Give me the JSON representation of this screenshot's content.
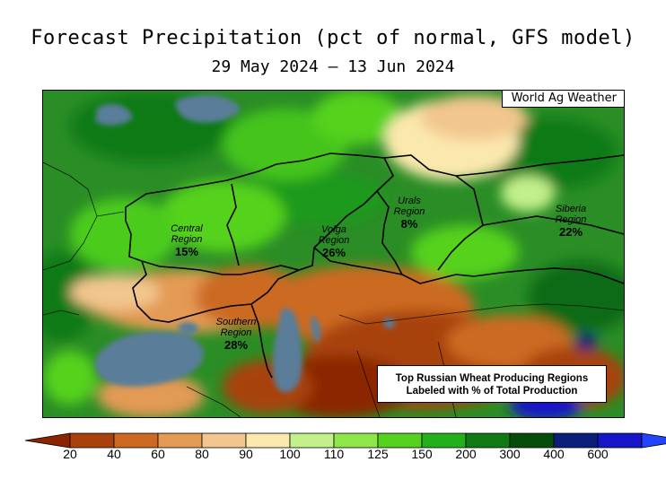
{
  "title": "Forecast Precipitation (pct of normal, GFS model)",
  "subtitle": "29 May 2024 — 13 Jun 2024",
  "source_label": "World Ag Weather",
  "regions": [
    {
      "name": "Central",
      "line2": "Region",
      "pct": "15%"
    },
    {
      "name": "Volga",
      "line2": "Region",
      "pct": "26%"
    },
    {
      "name": "Urals",
      "line2": "Region",
      "pct": "8%"
    },
    {
      "name": "Siberia",
      "line2": "Region",
      "pct": "22%"
    },
    {
      "name": "Southern",
      "line2": "Region",
      "pct": "28%"
    }
  ],
  "note": {
    "line1": "Top Russian Wheat Producing Regions",
    "line2": "Labeled with % of Total Production"
  },
  "legend": {
    "ticks": [
      "20",
      "40",
      "60",
      "80",
      "90",
      "100",
      "110",
      "125",
      "150",
      "200",
      "300",
      "400",
      "600"
    ],
    "colors": [
      "#8b2500",
      "#a8420c",
      "#cc6a22",
      "#e39a55",
      "#f2c68e",
      "#fbe8ad",
      "#c2f08a",
      "#8ee649",
      "#55d21f",
      "#24b01a",
      "#0f7a14",
      "#064d0c",
      "#0a1f7a",
      "#1616c8",
      "#2244ff"
    ]
  }
}
